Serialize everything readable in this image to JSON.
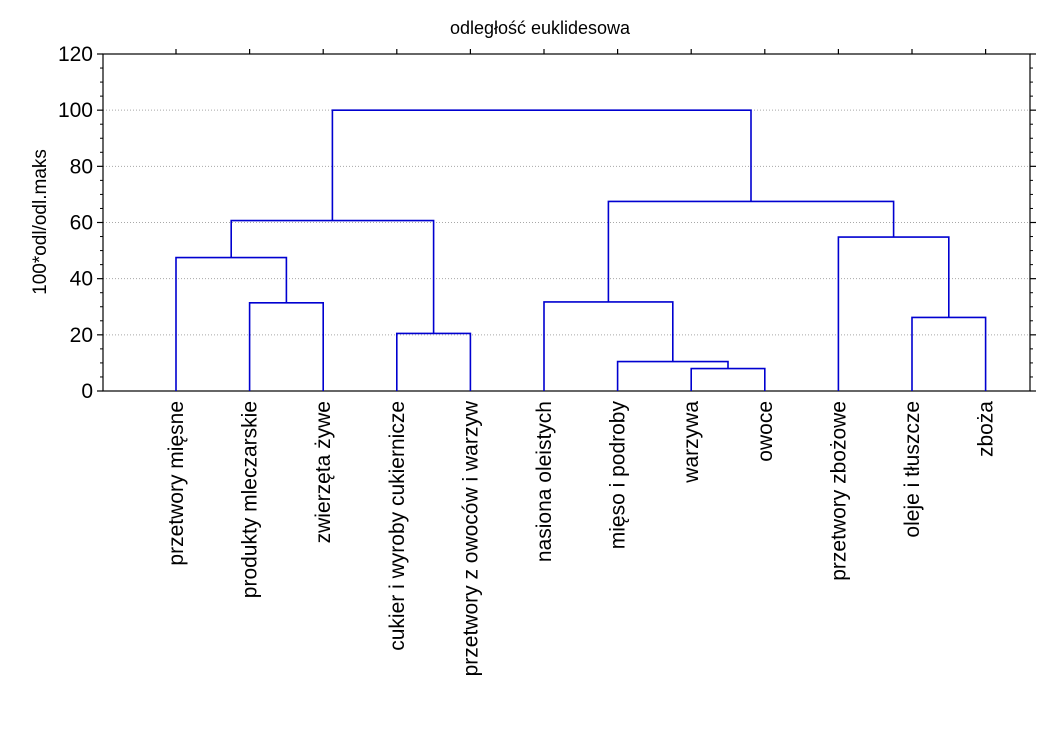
{
  "chart_data": {
    "type": "dendrogram",
    "title": "odległość euklidesowa",
    "ylabel": "100*odl/odl.maks",
    "xlabel": "",
    "ylim": [
      0,
      120
    ],
    "yticks": [
      "0",
      "20",
      "40",
      "60",
      "80",
      "100",
      "120"
    ],
    "grid": true,
    "line_color": "#0000d0",
    "leaves": [
      "przetwory mięsne",
      "produkty mleczarskie",
      "zwierzęta żywe",
      "cukier i wyroby cukiernicze",
      "przetwory z owoców i warzyw",
      "nasiona oleistych",
      "mięso i podroby",
      "warzywa",
      "owoce",
      "przetwory zbożowe",
      "oleje i tłuszcze",
      "zboża"
    ],
    "merges": [
      {
        "left": "warzywa",
        "right": "owoce",
        "height": 8
      },
      {
        "left": "mięso i podroby",
        "right": "warzywa+owoce",
        "height": 10.5
      },
      {
        "left": "cukier i wyroby cukiernicze",
        "right": "przetwory z owoców i warzyw",
        "height": 20.5
      },
      {
        "left": "oleje i tłuszcze",
        "right": "zboża",
        "height": 26.2
      },
      {
        "left": "produkty mleczarskie",
        "right": "zwierzęta żywe",
        "height": 31.4
      },
      {
        "left": "nasiona oleistych",
        "right": "mięso i podroby+warzywa+owoce",
        "height": 31.7
      },
      {
        "left": "przetwory mięsne",
        "right": "produkty mleczarskie+zwierzęta żywe",
        "height": 47.5
      },
      {
        "left": "przetwory zbożowe",
        "right": "oleje i tłuszcze+zboża",
        "height": 54.8
      },
      {
        "left": "przetwory mięsne+produkty mleczarskie+zwierzęta żywe",
        "right": "cukier i wyroby cukiernicze+przetwory z owoców i warzyw",
        "height": 60.7
      },
      {
        "left": "nasiona oleistych+mięso i podroby+warzywa+owoce",
        "right": "przetwory zbożowe+oleje i tłuszcze+zboża",
        "height": 67.5
      },
      {
        "left": "left-cluster",
        "right": "right-cluster",
        "height": 100
      }
    ]
  }
}
